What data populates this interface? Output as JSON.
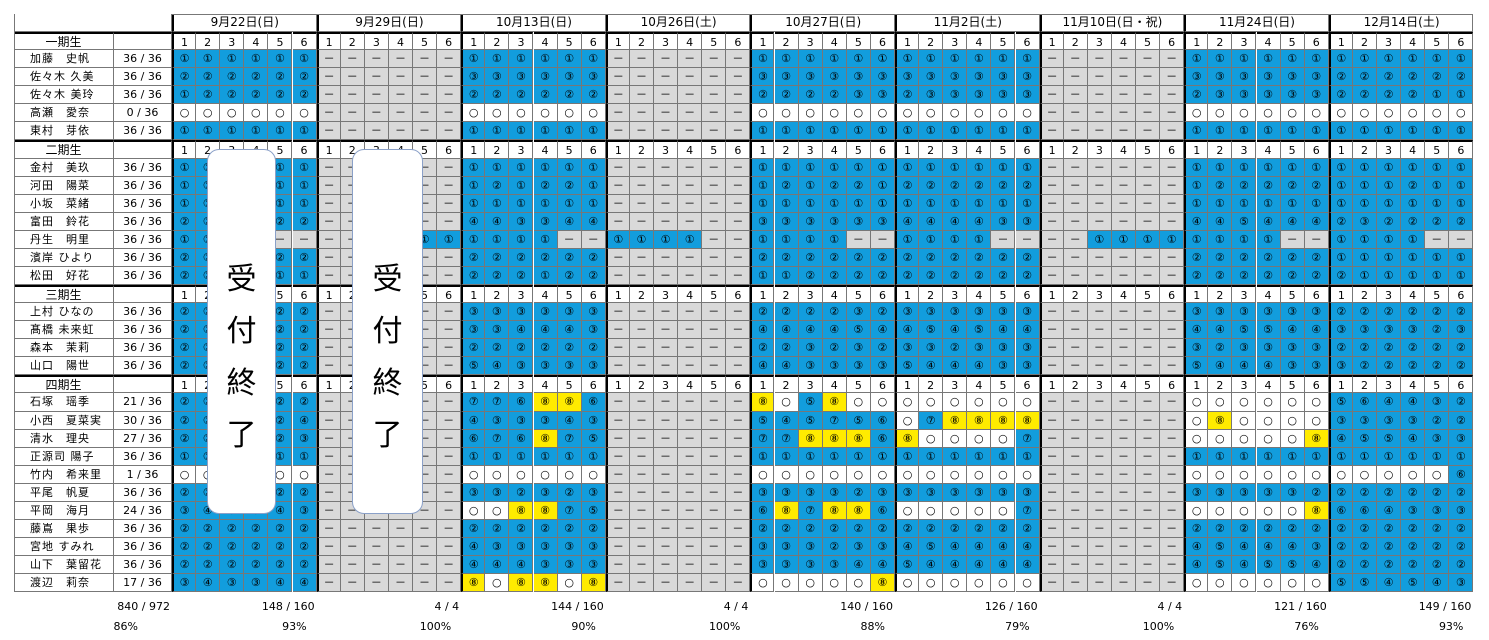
{
  "dates": [
    "9月22日(日)",
    "9月29日(日)",
    "10月13日(日)",
    "10月26日(土)",
    "10月27日(日)",
    "11月2日(土)",
    "11月10日(日・祝)",
    "11月24日(日)",
    "12月14日(土)"
  ],
  "slots": [
    "1",
    "2",
    "3",
    "4",
    "5",
    "6"
  ],
  "callout_text": [
    "受",
    "付",
    "終",
    "了"
  ],
  "groups": [
    {
      "label": "一期生",
      "members": [
        {
          "name": "加藤　史帆",
          "ratio": "36 / 36",
          "rows": [
            "B1 B1 B1 B1 B1 B1",
            "G G G G G G",
            "B1 B1 B1 B1 B1 B1",
            "G G G G G G",
            "B1 B1 B1 B1 B1 B1",
            "B1 B1 B1 B1 B1 B1",
            "G G G G G G",
            "B1 B1 B1 B1 B1 B1",
            "B1 B1 B1 B1 B1 B1"
          ]
        },
        {
          "name": "佐々木 久美",
          "ratio": "36 / 36",
          "rows": [
            "B2 B2 B2 B2 B2 B2",
            "G G G G G G",
            "B3 B3 B3 B3 B3 B3",
            "G G G G G G",
            "B3 B3 B3 B3 B3 B3",
            "B3 B3 B3 B3 B3 B3",
            "G G G G G G",
            "B3 B3 B3 B3 B3 B3",
            "B2 B2 B2 B2 B2 B2"
          ]
        },
        {
          "name": "佐々木 美玲",
          "ratio": "36 / 36",
          "rows": [
            "B1 B2 B2 B2 B2 B2",
            "G G G G G G",
            "B2 B2 B2 B2 B2 B2",
            "G G G G G G",
            "B2 B2 B2 B2 B3 B3",
            "B2 B3 B3 B3 B3 B3",
            "G G G G G G",
            "B2 B3 B3 B3 B3 B3",
            "B2 B2 B2 B2 B1 B1"
          ]
        },
        {
          "name": "高瀬　愛奈",
          "ratio": "0 / 36",
          "rows": [
            "W0 W0 W0 W0 W0 W0",
            "G G G G G G",
            "W0 W0 W0 W0 W0 W0",
            "G G G G G G",
            "W0 W0 W0 W0 W0 W0",
            "W0 W0 W0 W0 W0 W0",
            "G G G G G G",
            "W0 W0 W0 W0 W0 W0",
            "W0 W0 W0 W0 W0 W0"
          ]
        },
        {
          "name": "東村　芽依",
          "ratio": "36 / 36",
          "rows": [
            "B1 B1 B1 B1 B1 B1",
            "G G G G G G",
            "B1 B1 B1 B1 B1 B1",
            "G G G G G G",
            "B1 B1 B1 B1 B1 B1",
            "B1 B1 B1 B1 B1 B1",
            "G G G G G G",
            "B1 B1 B1 B1 B1 B1",
            "B1 B1 B1 B1 B1 B1"
          ]
        }
      ]
    },
    {
      "label": "二期生",
      "members": [
        {
          "name": "金村　美玖",
          "ratio": "36 / 36",
          "rows": [
            "B1 B1 B1 B1 B1 B1",
            "G G G G G G",
            "B1 B1 B1 B1 B1 B1",
            "G G G G G G",
            "B1 B1 B1 B1 B1 B1",
            "B1 B1 B1 B1 B1 B1",
            "G G G G G G",
            "B1 B1 B1 B1 B1 B1",
            "B1 B1 B1 B1 B1 B1"
          ]
        },
        {
          "name": "河田　陽菜",
          "ratio": "36 / 36",
          "rows": [
            "B1 B1 B1 B1 B1 B1",
            "G G G G G G",
            "B1 B2 B1 B2 B2 B1",
            "G G G G G G",
            "B1 B2 B1 B2 B2 B1",
            "B2 B2 B2 B2 B2 B2",
            "G G G G G G",
            "B1 B2 B2 B2 B2 B2",
            "B1 B1 B1 B2 B1 B1"
          ]
        },
        {
          "name": "小坂　菜緒",
          "ratio": "36 / 36",
          "rows": [
            "B1 B1 B1 B1 B1 B1",
            "G G G G G G",
            "B1 B1 B1 B1 B1 B1",
            "G G G G G G",
            "B1 B1 B1 B1 B1 B1",
            "B1 B1 B1 B1 B1 B1",
            "G G G G G G",
            "B1 B1 B1 B1 B1 B1",
            "B1 B1 B1 B1 B1 B1"
          ]
        },
        {
          "name": "富田　鈴花",
          "ratio": "36 / 36",
          "rows": [
            "B2 B2 B2 B2 B2 B2",
            "G G G G G G",
            "B4 B4 B3 B3 B4 B4",
            "G G G G G G",
            "B3 B3 B3 B3 B3 B3",
            "B4 B4 B4 B4 B3 B3",
            "G G G G G G",
            "B4 B4 B5 B4 B4 B4",
            "B2 B3 B2 B2 B2 B2"
          ]
        },
        {
          "name": "丹生　明里",
          "ratio": "36 / 36",
          "rows": [
            "B1 B1 B1 B1 G G",
            "G G B1 B1 B1 B1",
            "B1 B1 B1 B1 G G",
            "B1 B1 B1 B1 G G",
            "B1 B1 B1 B1 G G",
            "B1 B1 B1 B1 G G",
            "G G B1 B1 B1 B1",
            "B1 B1 B1 B1 G G",
            "B1 B1 B1 B1 G G"
          ]
        },
        {
          "name": "濱岸 ひより",
          "ratio": "36 / 36",
          "rows": [
            "B2 B2 B2 B2 B2 B2",
            "G G G G G G",
            "B2 B2 B2 B2 B2 B2",
            "G G G G G G",
            "B2 B2 B2 B2 B2 B2",
            "B2 B2 B2 B2 B2 B2",
            "G G G G G G",
            "B2 B2 B2 B2 B2 B2",
            "B1 B1 B1 B1 B1 B1"
          ]
        },
        {
          "name": "松田　好花",
          "ratio": "36 / 36",
          "rows": [
            "B2 B2 B2 B2 B1 B1",
            "G G G G G G",
            "B2 B2 B2 B1 B2 B2",
            "G G G G G G",
            "B1 B1 B2 B2 B2 B2",
            "B2 B2 B2 B2 B2 B2",
            "G G G G G G",
            "B2 B2 B2 B2 B2 B2",
            "B2 B1 B1 B1 B1 B1"
          ]
        }
      ]
    },
    {
      "label": "三期生",
      "members": [
        {
          "name": "上村 ひなの",
          "ratio": "36 / 36",
          "rows": [
            "B2 B2 B2 B2 B2 B2",
            "G G G G G G",
            "B3 B3 B3 B3 B3 B3",
            "G G G G G G",
            "B2 B2 B2 B2 B3 B2",
            "B3 B3 B3 B3 B3 B3",
            "G G G G G G",
            "B3 B3 B3 B3 B3 B3",
            "B2 B2 B2 B2 B2 B2"
          ]
        },
        {
          "name": "髙橋 未来虹",
          "ratio": "36 / 36",
          "rows": [
            "B2 B2 B2 B2 B2 B2",
            "G G G G G G",
            "B3 B3 B4 B4 B4 B3",
            "G G G G G G",
            "B4 B4 B4 B4 B5 B4",
            "B4 B5 B4 B5 B4 B4",
            "G G G G G G",
            "B4 B4 B5 B5 B4 B4",
            "B3 B3 B3 B3 B2 B3"
          ]
        },
        {
          "name": "森本　茉莉",
          "ratio": "36 / 36",
          "rows": [
            "B2 B2 B2 B2 B2 B2",
            "G G G G G G",
            "B2 B2 B2 B2 B2 B2",
            "G G G G G G",
            "B2 B2 B3 B2 B3 B2",
            "B3 B3 B2 B3 B3 B3",
            "G G G G G G",
            "B3 B2 B3 B3 B3 B3",
            "B2 B2 B2 B2 B2 B2"
          ]
        },
        {
          "name": "山口　陽世",
          "ratio": "36 / 36",
          "rows": [
            "B2 B2 B2 B2 B2 B2",
            "G G G G G G",
            "B5 B4 B3 B3 B3 B3",
            "G G G G G G",
            "B4 B4 B3 B3 B3 B3",
            "B5 B4 B4 B4 B3 B3",
            "G G G G G G",
            "B5 B4 B4 B4 B3 B3",
            "B3 B2 B2 B2 B2 B2"
          ]
        }
      ]
    },
    {
      "label": "四期生",
      "members": [
        {
          "name": "石塚　瑶季",
          "ratio": "21 / 36",
          "rows": [
            "B2 B2 B2 B2 B2 B2",
            "G G G G G G",
            "B7 B7 B6 Y8 Y8 B6",
            "G G G G G G",
            "Y8 W0 B5 Y8 W0 W0",
            "W0 W0 W0 W0 W0 W0",
            "G G G G G G",
            "W0 W0 W0 W0 W0 W0",
            "B5 B6 B4 B4 B3 B2"
          ]
        },
        {
          "name": "小西　夏菜実",
          "ratio": "30 / 36",
          "rows": [
            "B2 B2 B2 B2 B2 B4",
            "G G G G G G",
            "B4 B3 B3 B3 B4 B3",
            "G G G G G G",
            "B5 B4 B5 B7 B5 B6",
            "W0 B7 Y8 Y8 Y8 Y8",
            "G G G G G G",
            "W0 Y8 W0 W0 W0 W0",
            "B3 B3 B3 B3 B2 B2"
          ]
        },
        {
          "name": "清水　理央",
          "ratio": "27 / 36",
          "rows": [
            "B2 B2 B2 B2 B2 B3",
            "G G G G G G",
            "B6 B7 B6 Y8 B7 B5",
            "G G G G G G",
            "B7 B7 Y8 Y8 Y8 B6",
            "Y8 W0 W0 W0 W0 B7",
            "G G G G G G",
            "W0 W0 W0 W0 W0 Y8",
            "B4 B5 B5 B4 B3 B3"
          ]
        },
        {
          "name": "正源司 陽子",
          "ratio": "36 / 36",
          "rows": [
            "B1 B1 B1 B1 B1 B1",
            "G G G G G G",
            "B1 B1 B1 B1 B1 B1",
            "G G G G G G",
            "B1 B1 B1 B1 B1 B1",
            "B1 B1 B1 B1 B1 B1",
            "G G G G G G",
            "B1 B1 B1 B1 B1 B1",
            "B1 B1 B1 B1 B1 B1"
          ]
        },
        {
          "name": "竹内　希来里",
          "ratio": "1 / 36",
          "rows": [
            "W0 W0 W0 W0 W0 W0",
            "G G G G G G",
            "W0 W0 W0 W0 W0 W0",
            "G G G G G G",
            "W0 W0 W0 W0 W0 W0",
            "W0 W0 W0 W0 W0 W0",
            "G G G G G G",
            "W0 W0 W0 W0 W0 W0",
            "W0 W0 W0 W0 W0 B6"
          ]
        },
        {
          "name": "平尾　帆夏",
          "ratio": "36 / 36",
          "rows": [
            "B2 B2 B2 B2 B2 B2",
            "G G G G G G",
            "B3 B3 B2 B3 B2 B3",
            "G G G G G G",
            "B3 B3 B3 B3 B2 B3",
            "B3 B3 B3 B3 B3 B3",
            "G G G G G G",
            "B3 B3 B3 B3 B3 B2",
            "B2 B2 B2 B2 B2 B2"
          ]
        },
        {
          "name": "平岡　海月",
          "ratio": "24 / 36",
          "rows": [
            "B3 B4 B3 B4 B4 B3",
            "G G G G G G",
            "W0 W0 Y8 Y8 B7 B5",
            "G G G G G G",
            "B6 Y8 B7 Y8 Y8 B6",
            "W0 W0 W0 W0 W0 B7",
            "G G G G G G",
            "W0 W0 W0 W0 W0 Y8",
            "B6 B6 B4 B3 B3 B3"
          ]
        },
        {
          "name": "藤嶌　果歩",
          "ratio": "36 / 36",
          "rows": [
            "B2 B2 B2 B2 B2 B2",
            "G G G G G G",
            "B2 B2 B2 B2 B2 B2",
            "G G G G G G",
            "B2 B2 B2 B2 B2 B2",
            "B2 B2 B2 B2 B2 B2",
            "G G G G G G",
            "B2 B2 B2 B2 B2 B2",
            "B2 B2 B2 B2 B2 B2"
          ]
        },
        {
          "name": "宮地 すみれ",
          "ratio": "36 / 36",
          "rows": [
            "B2 B2 B2 B2 B2 B2",
            "G G G G G G",
            "B4 B3 B3 B3 B3 B3",
            "G G G G G G",
            "B3 B3 B3 B2 B3 B3",
            "B4 B5 B4 B4 B4 B4",
            "G G G G G G",
            "B4 B5 B4 B4 B4 B3",
            "B2 B2 B2 B2 B2 B2"
          ]
        },
        {
          "name": "山下　葉留花",
          "ratio": "36 / 36",
          "rows": [
            "B2 B2 B2 B2 B2 B2",
            "G G G G G G",
            "B4 B4 B4 B3 B3 B3",
            "G G G G G G",
            "B3 B3 B3 B3 B4 B4",
            "B5 B4 B4 B4 B4 B4",
            "G G G G G G",
            "B4 B5 B4 B5 B5 B4",
            "B2 B2 B2 B2 B2 B2"
          ]
        },
        {
          "name": "渡辺　莉奈",
          "ratio": "17 / 36",
          "rows": [
            "B3 B4 B3 B3 B4 B4",
            "G G G G G G",
            "Y8 W0 Y8 Y8 W0 Y8",
            "G G G G G G",
            "W0 W0 W0 W0 W0 Y8",
            "W0 W0 W0 W0 W0 W0",
            "G G G G G G",
            "W0 W0 W0 W0 W0 W0",
            "B5 B5 B4 B5 B4 B3"
          ]
        }
      ]
    }
  ],
  "totals": {
    "overall_count": "840 / 972",
    "overall_pct": "86%",
    "per_date": [
      {
        "count": "148 / 160",
        "pct": "93%"
      },
      {
        "count": "4 / 4",
        "pct": "100%"
      },
      {
        "count": "144 / 160",
        "pct": "90%"
      },
      {
        "count": "4 / 4",
        "pct": "100%"
      },
      {
        "count": "140 / 160",
        "pct": "88%"
      },
      {
        "count": "126 / 160",
        "pct": "79%"
      },
      {
        "count": "4 / 4",
        "pct": "100%"
      },
      {
        "count": "121 / 160",
        "pct": "76%"
      },
      {
        "count": "149 / 160",
        "pct": "93%"
      }
    ]
  },
  "colors": {
    "blue": "#129ddd",
    "gray": "#d9d9d9",
    "yellow": "#ffeb00",
    "white": "#ffffff"
  }
}
